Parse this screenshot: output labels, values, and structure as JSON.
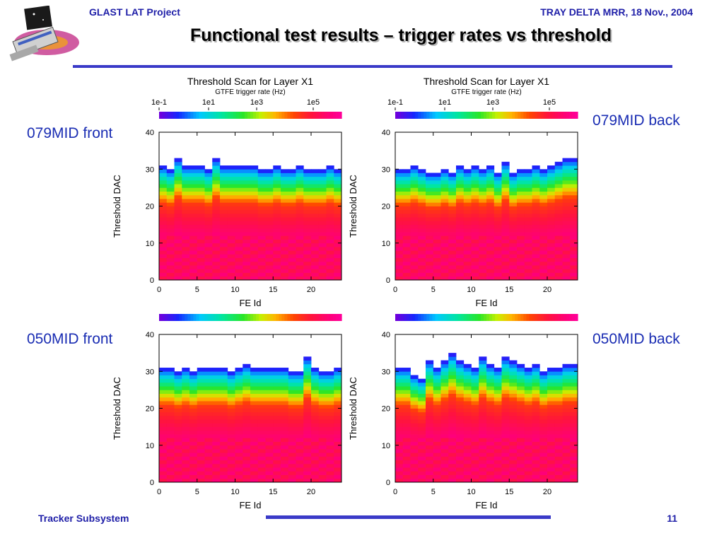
{
  "header": {
    "left": "GLAST LAT Project",
    "right": "TRAY DELTA MRR, 18 Nov., 2004"
  },
  "title": "Functional test results – trigger rates vs threshold",
  "footer": {
    "left": "Tracker Subsystem",
    "page": "11"
  },
  "side_labels": {
    "top_left": "079MID front",
    "top_right": "079MID back",
    "bottom_left": "050MID front",
    "bottom_right": "050MID back"
  },
  "colors": {
    "header_text": "#1f1fa8",
    "label_text": "#1a2db3",
    "rule": "#3a3ac8"
  },
  "chart_data": [
    {
      "type": "heatmap",
      "panel": "079MID front",
      "title": "Threshold Scan for Layer X1",
      "subtitle": "GTFE trigger rate (Hz)",
      "colorbar_ticks": [
        "1e-1",
        "1e1",
        "1e3",
        "1e5"
      ],
      "colorbar_scale": "log",
      "xlabel": "FE Id",
      "ylabel": "Threshold DAC",
      "xlim": [
        0,
        24
      ],
      "ylim": [
        0,
        40
      ],
      "xticks": [
        "0",
        "5",
        "10",
        "15",
        "20"
      ],
      "yticks": [
        "0",
        "10",
        "20",
        "30",
        "40"
      ],
      "fe_ids": [
        0,
        1,
        2,
        3,
        4,
        5,
        6,
        7,
        8,
        9,
        10,
        11,
        12,
        13,
        14,
        15,
        16,
        17,
        18,
        19,
        20,
        21,
        22,
        23
      ],
      "top_threshold_dac": [
        31,
        30,
        33,
        31,
        31,
        31,
        30,
        33,
        31,
        31,
        31,
        31,
        31,
        30,
        30,
        31,
        30,
        30,
        31,
        30,
        30,
        30,
        31,
        30
      ]
    },
    {
      "type": "heatmap",
      "panel": "079MID back",
      "title": "Threshold Scan for Layer X1",
      "subtitle": "GTFE trigger rate (Hz)",
      "colorbar_ticks": [
        "1e-1",
        "1e1",
        "1e3",
        "1e5"
      ],
      "colorbar_scale": "log",
      "xlabel": "FE Id",
      "ylabel": "Threshold DAC",
      "xlim": [
        0,
        24
      ],
      "ylim": [
        0,
        40
      ],
      "xticks": [
        "0",
        "5",
        "10",
        "15",
        "20"
      ],
      "yticks": [
        "0",
        "10",
        "20",
        "30",
        "40"
      ],
      "fe_ids": [
        0,
        1,
        2,
        3,
        4,
        5,
        6,
        7,
        8,
        9,
        10,
        11,
        12,
        13,
        14,
        15,
        16,
        17,
        18,
        19,
        20,
        21,
        22,
        23
      ],
      "top_threshold_dac": [
        30,
        30,
        31,
        30,
        29,
        29,
        30,
        29,
        31,
        30,
        31,
        30,
        31,
        29,
        32,
        29,
        30,
        30,
        31,
        30,
        31,
        32,
        33,
        33
      ]
    },
    {
      "type": "heatmap",
      "panel": "050MID front",
      "title": "",
      "subtitle": "",
      "colorbar_ticks": [],
      "colorbar_scale": "log",
      "xlabel": "FE Id",
      "ylabel": "Threshold DAC",
      "xlim": [
        0,
        24
      ],
      "ylim": [
        0,
        40
      ],
      "xticks": [
        "0",
        "5",
        "10",
        "15",
        "20"
      ],
      "yticks": [
        "0",
        "10",
        "20",
        "30",
        "40"
      ],
      "fe_ids": [
        0,
        1,
        2,
        3,
        4,
        5,
        6,
        7,
        8,
        9,
        10,
        11,
        12,
        13,
        14,
        15,
        16,
        17,
        18,
        19,
        20,
        21,
        22,
        23
      ],
      "top_threshold_dac": [
        31,
        31,
        30,
        31,
        30,
        31,
        31,
        31,
        31,
        30,
        31,
        32,
        31,
        31,
        31,
        31,
        31,
        30,
        30,
        34,
        31,
        30,
        30,
        31
      ]
    },
    {
      "type": "heatmap",
      "panel": "050MID back",
      "title": "",
      "subtitle": "",
      "colorbar_ticks": [],
      "colorbar_scale": "log",
      "xlabel": "FE Id",
      "ylabel": "Threshold DAC",
      "xlim": [
        0,
        24
      ],
      "ylim": [
        0,
        40
      ],
      "xticks": [
        "0",
        "5",
        "10",
        "15",
        "20"
      ],
      "yticks": [
        "0",
        "10",
        "20",
        "30",
        "40"
      ],
      "fe_ids": [
        0,
        1,
        2,
        3,
        4,
        5,
        6,
        7,
        8,
        9,
        10,
        11,
        12,
        13,
        14,
        15,
        16,
        17,
        18,
        19,
        20,
        21,
        22,
        23
      ],
      "top_threshold_dac": [
        31,
        31,
        29,
        28,
        33,
        31,
        33,
        35,
        33,
        32,
        31,
        34,
        32,
        31,
        34,
        33,
        32,
        31,
        32,
        30,
        31,
        31,
        32,
        32
      ]
    }
  ]
}
